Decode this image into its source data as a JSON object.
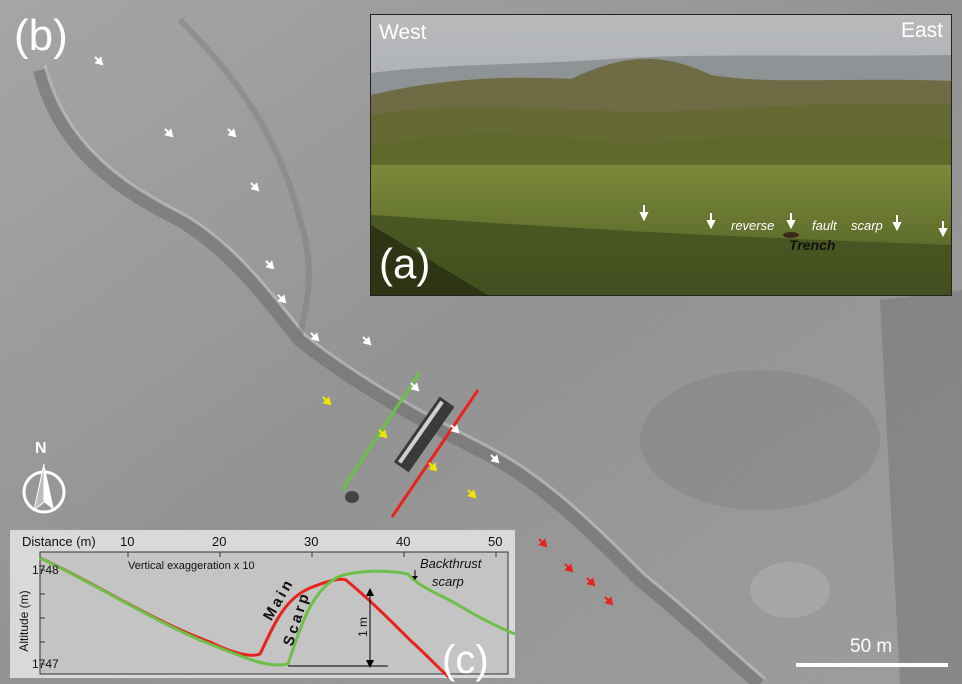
{
  "panel_b_label": "(b)",
  "photo": {
    "west": "West",
    "east": "East",
    "panel_label": "(a)",
    "word_reverse": "reverse",
    "word_fault": "fault",
    "word_scarp": "scarp",
    "trench": "Trench"
  },
  "profile": {
    "distance_label": "Distance (m)",
    "distance_ticks": [
      "10",
      "20",
      "30",
      "40",
      "50"
    ],
    "vertical_exaggeration": "Vertical exaggeration x 10",
    "altitude_label": "Altitude (m)",
    "alt_top": "1748",
    "alt_bottom": "1747",
    "main": "Main",
    "scarp": "Scarp",
    "backthrust": "Backthrust",
    "backthrust_scarp": "scarp",
    "one_meter": "1 m",
    "panel_label": "(c)"
  },
  "scale": "50 m",
  "north": "N",
  "colors": {
    "red_profile": "#e8231e",
    "green_profile": "#6cc04a",
    "white_arrow": "#ffffff",
    "yellow_arrow": "#f2e300",
    "red_arrow": "#e8231e"
  }
}
